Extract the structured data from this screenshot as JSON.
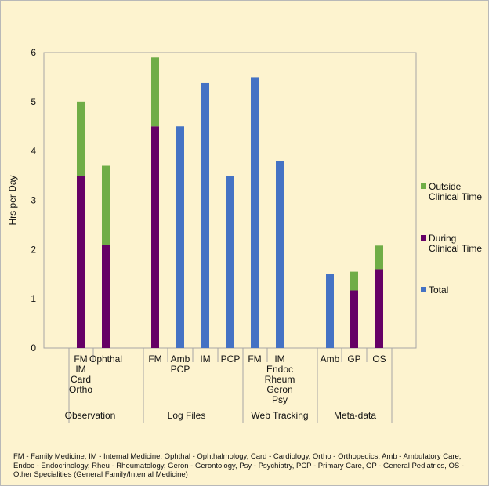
{
  "chart_data": {
    "type": "bar",
    "stacked": true,
    "ylabel": "Hrs per Day",
    "ylim": [
      0,
      6
    ],
    "yticks": [
      "0",
      "1",
      "2",
      "3",
      "4",
      "5",
      "6"
    ],
    "series": [
      {
        "name": "Outside Clinical Time",
        "color": "#70ad47"
      },
      {
        "name": "During Clinical Time",
        "color": "#660066"
      },
      {
        "name": "Total",
        "color": "#4472c4"
      }
    ],
    "legend_labels": [
      [
        "Outside",
        "Clinical Time"
      ],
      [
        "During",
        "Clinical Time"
      ],
      [
        "Total"
      ]
    ],
    "groups": [
      {
        "name": "Observation"
      },
      {
        "name": "Log Files"
      },
      {
        "name": "Web Tracking"
      },
      {
        "name": "Meta-data"
      }
    ],
    "bars": [
      {
        "group": "Observation",
        "label": [
          "FM",
          "IM",
          "Card",
          "Ortho"
        ],
        "during": 3.5,
        "outside": 1.5,
        "total": null
      },
      {
        "group": "Observation",
        "label": [
          "Ophthal"
        ],
        "during": 2.1,
        "outside": 1.6,
        "total": null
      },
      {
        "group": "Log Files",
        "label": [
          "FM"
        ],
        "during": 4.5,
        "outside": 1.4,
        "total": null
      },
      {
        "group": "Log Files",
        "label": [
          "Amb",
          "PCP"
        ],
        "during": null,
        "outside": null,
        "total": 4.5
      },
      {
        "group": "Log Files",
        "label": [
          "IM"
        ],
        "during": null,
        "outside": null,
        "total": 5.38
      },
      {
        "group": "Log Files",
        "label": [
          "PCP"
        ],
        "during": null,
        "outside": null,
        "total": 3.5
      },
      {
        "group": "Web Tracking",
        "label": [
          "FM"
        ],
        "during": null,
        "outside": null,
        "total": 5.5
      },
      {
        "group": "Web Tracking",
        "label": [
          "IM",
          "Endoc",
          "Rheum",
          "Geron",
          "Psy"
        ],
        "during": null,
        "outside": null,
        "total": 3.8
      },
      {
        "group": "Meta-data",
        "label": [
          "Amb"
        ],
        "during": null,
        "outside": null,
        "total": 1.5
      },
      {
        "group": "Meta-data",
        "label": [
          "GP"
        ],
        "during": 1.17,
        "outside": 0.38,
        "total": null
      },
      {
        "group": "Meta-data",
        "label": [
          "OS"
        ],
        "during": 1.6,
        "outside": 0.48,
        "total": null
      }
    ]
  },
  "footnote": "FM - Family Medicine, IM - Internal Medicine, Ophthal - Ophthalmology, Card - Cardiology, Ortho - Orthopedics, Amb - Ambulatory Care, Endoc - Endocrinology, Rheu - Rheumatology, Geron - Gerontology, Psy - Psychiatry, PCP - Primary Care, GP - General Pediatrics, OS - Other Specialities (General Family/Internal Medicine)"
}
